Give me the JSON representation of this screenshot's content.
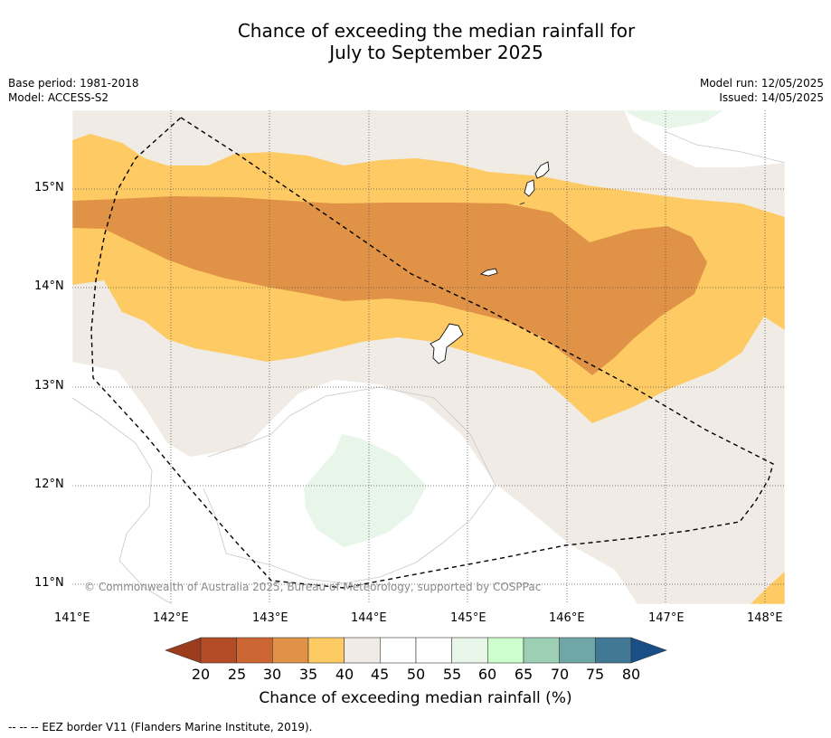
{
  "title_line1": "Chance of exceeding the median rainfall for",
  "title_line2": "July to September 2025",
  "meta_left": [
    "Base period: 1981-2018",
    "Model: ACCESS-S2"
  ],
  "meta_right": [
    "Model run: 12/05/2025",
    "Issued: 14/05/2025"
  ],
  "map": {
    "lon_range": [
      141.0,
      148.2
    ],
    "lat_range": [
      10.8,
      15.8
    ],
    "lat_ticks": [
      "15°N",
      "14°N",
      "13°N",
      "12°N",
      "11°N"
    ],
    "lon_ticks": [
      "141°E",
      "142°E",
      "143°E",
      "144°E",
      "145°E",
      "146°E",
      "147°E",
      "148°E"
    ],
    "copyright": "© Commonwealth of Australia 2025, Bureau of Meteorology, supported by COSPPac",
    "gridlines": "dotted"
  },
  "colors": {
    "c20_25": "#b34b27",
    "c25_30": "#cc6633",
    "c30_35": "#e09346",
    "c35_40": "#fdca63",
    "c40_45": "#f0ebe5",
    "c45_55": "#ffffff",
    "c55_60": "#e8f5e9",
    "c60_65": "#ccffcc",
    "c65_70": "#9ccfb4",
    "c70_75": "#6fa6a6",
    "c75_80": "#417994",
    "c80_plus": "#1a4e87",
    "c_below_20": "#9c3c1e"
  },
  "colorbar": {
    "ticks": [
      "20",
      "25",
      "30",
      "35",
      "40",
      "45",
      "50",
      "55",
      "60",
      "65",
      "70",
      "75",
      "80"
    ],
    "label": "Chance of exceeding median rainfall (%)"
  },
  "footnote": "--  --  -- EEZ border V11 (Flanders Marine Institute, 2019)."
}
